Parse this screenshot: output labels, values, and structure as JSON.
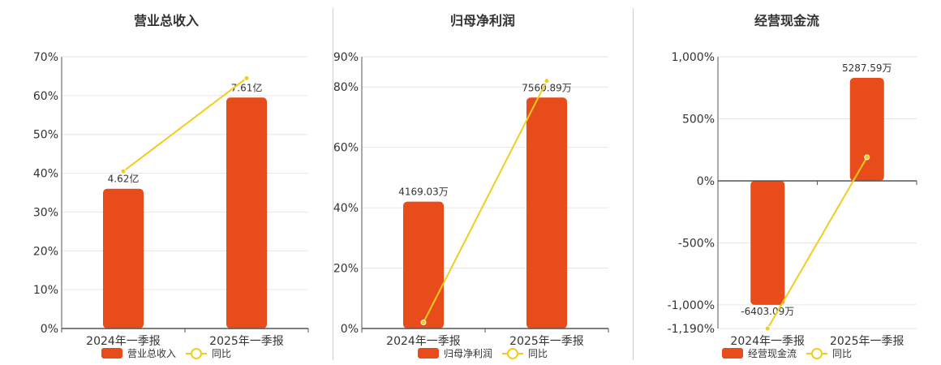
{
  "colors": {
    "bar": "#E84C1A",
    "line": "#F2CC1F",
    "axis": "#555555",
    "grid": "#E6E6E6",
    "text": "#333333"
  },
  "legend": {
    "line_label": "同比"
  },
  "chart_data": [
    {
      "type": "bar",
      "title": "营业总收入",
      "categories": [
        "2024年一季报",
        "2025年一季报"
      ],
      "series": [
        {
          "name": "营业总收入",
          "type": "bar",
          "values": [
            36,
            59.5
          ],
          "labels": [
            "4.62亿",
            "7.61亿"
          ]
        },
        {
          "name": "同比",
          "type": "line",
          "values": [
            40.5,
            64.5
          ]
        }
      ],
      "y_ticks": [
        0,
        10,
        20,
        30,
        40,
        50,
        60,
        70
      ],
      "y_tick_labels": [
        "0%",
        "10%",
        "20%",
        "30%",
        "40%",
        "50%",
        "60%",
        "70%"
      ],
      "ylim": [
        0,
        70
      ]
    },
    {
      "type": "bar",
      "title": "归母净利润",
      "categories": [
        "2024年一季报",
        "2025年一季报"
      ],
      "series": [
        {
          "name": "归母净利润",
          "type": "bar",
          "values": [
            42,
            76.5
          ],
          "labels": [
            "4169.03万",
            "7560.89万"
          ]
        },
        {
          "name": "同比",
          "type": "line",
          "values": [
            2,
            82
          ]
        }
      ],
      "y_ticks": [
        0,
        20,
        40,
        60,
        80,
        90
      ],
      "y_tick_labels": [
        "0%",
        "20%",
        "40%",
        "60%",
        "80%",
        "90%"
      ],
      "ylim": [
        0,
        90
      ]
    },
    {
      "type": "bar",
      "title": "经营现金流",
      "categories": [
        "2024年一季报",
        "2025年一季报"
      ],
      "series": [
        {
          "name": "经营现金流",
          "type": "bar",
          "values": [
            -1000,
            830
          ],
          "labels": [
            "-6403.09万",
            "5287.59万"
          ]
        },
        {
          "name": "同比",
          "type": "line",
          "values": [
            -1190,
            190
          ]
        }
      ],
      "y_ticks": [
        -1190,
        -1000,
        -500,
        0,
        500,
        1000
      ],
      "y_tick_labels": [
        "-1,190%",
        "-1,000%",
        "-500%",
        "0%",
        "500%",
        "1,000%"
      ],
      "ylim": [
        -1190,
        1000
      ]
    }
  ]
}
